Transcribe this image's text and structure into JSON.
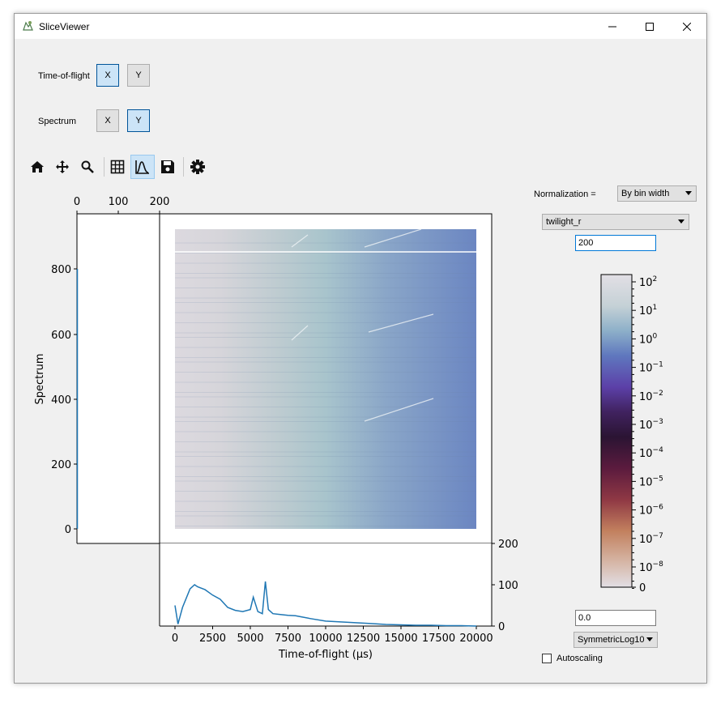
{
  "window": {
    "title": "SliceViewer"
  },
  "dims": {
    "tof_label": "Time-of-flight",
    "spectrum_label": "Spectrum",
    "x_label": "X",
    "y_label": "Y"
  },
  "toolbar": {
    "icons": [
      "home-icon",
      "pan-icon",
      "zoom-icon",
      "grid-icon",
      "line-plots-icon",
      "save-icon",
      "settings-icon"
    ]
  },
  "controls": {
    "normalization_label": "Normalization =",
    "normalization_value": "By bin width",
    "colormap_value": "twilight_r",
    "cmax_value": "200",
    "cmin_value": "0.0",
    "scale_value": "SymmetricLog10",
    "autoscaling_label": "Autoscaling",
    "autoscaling_checked": false
  },
  "plot": {
    "ylabel": "Spectrum",
    "xlabel": "Time-of-flight (μs)",
    "main_yticks": [
      "800",
      "600",
      "400",
      "200",
      "0"
    ],
    "left_top_ticks": [
      "0",
      "100",
      "200"
    ],
    "bottom_xticks": [
      "0",
      "2500",
      "5000",
      "7500",
      "10000",
      "12500",
      "15000",
      "17500",
      "20000"
    ],
    "bottom_right_ticks": [
      "200",
      "100",
      "0"
    ],
    "colorbar_ticks": [
      "10^2",
      "10^1",
      "10^0",
      "10^-1",
      "10^-2",
      "10^-3",
      "10^-4",
      "10^-5",
      "10^-6",
      "10^-7",
      "10^-8",
      "0"
    ],
    "colors": {
      "line": "#1f77b4"
    }
  },
  "chart_data": [
    {
      "type": "heatmap",
      "xlabel": "Time-of-flight (μs)",
      "ylabel": "Spectrum",
      "xlim": [
        0,
        20000
      ],
      "ylim": [
        0,
        920
      ],
      "colormap": "twilight_r",
      "color_scale": "SymmetricLog10",
      "color_range": [
        0,
        200
      ]
    },
    {
      "type": "line",
      "xlabel": "Time-of-flight (μs)",
      "x": [
        0,
        200,
        500,
        1000,
        1300,
        1500,
        2000,
        2500,
        3000,
        3500,
        4000,
        4500,
        5000,
        5200,
        5500,
        5800,
        6000,
        6200,
        6500,
        7000,
        7500,
        8000,
        9000,
        10000,
        11000,
        12000,
        13000,
        14000,
        15000,
        16000,
        17000,
        18000,
        19000,
        20000
      ],
      "y": [
        50,
        5,
        45,
        90,
        100,
        95,
        88,
        75,
        65,
        45,
        38,
        35,
        40,
        70,
        35,
        30,
        108,
        40,
        30,
        28,
        26,
        25,
        18,
        12,
        10,
        8,
        6,
        4,
        3,
        2,
        2,
        1,
        1,
        0
      ],
      "ylim": [
        0,
        200
      ]
    },
    {
      "type": "line",
      "ylabel": "Spectrum",
      "x": [
        1,
        1,
        1,
        1,
        1
      ],
      "y": [
        0,
        200,
        400,
        600,
        800
      ],
      "xlim": [
        0,
        200
      ]
    }
  ]
}
